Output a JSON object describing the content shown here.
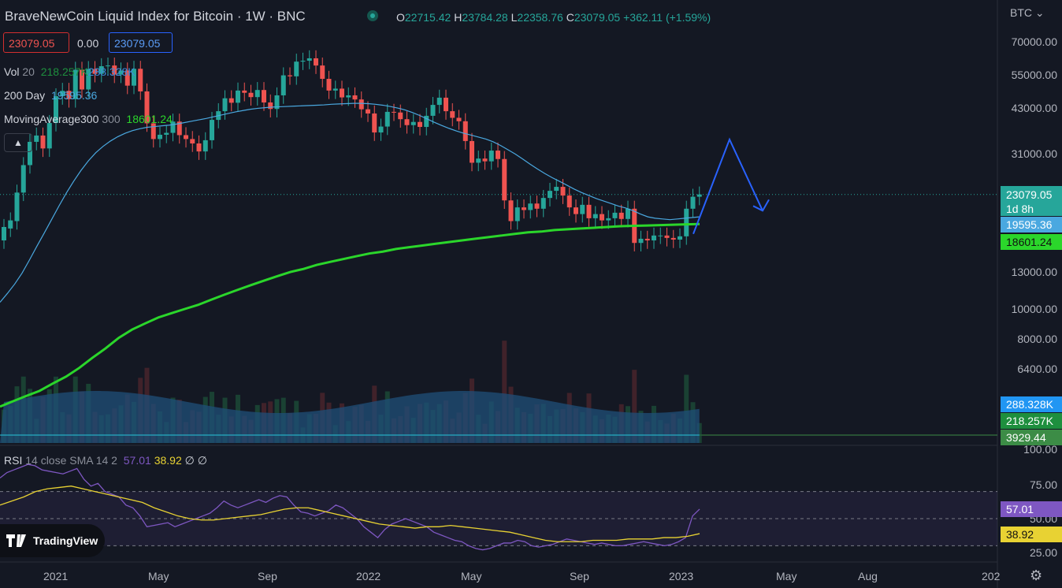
{
  "header": {
    "title": "BraveNewCoin Liquid Index for Bitcoin · 1W · BNC",
    "ohlc": [
      {
        "k": "O",
        "v": "22715.42"
      },
      {
        "k": "H",
        "v": "23784.28"
      },
      {
        "k": "L",
        "v": "22358.76"
      },
      {
        "k": "C",
        "v": "23079.05"
      },
      {
        "k": "",
        "v": "+362.11 (+1.59%)"
      }
    ],
    "sell_price": "23079.05",
    "spread": "0.00",
    "buy_price": "23079.05",
    "currency": "BTC",
    "currency_icon": "chevron-down-icon"
  },
  "indicators": [
    {
      "name": "Vol",
      "param": "20",
      "v1": "218.257K",
      "v2": "288.328K",
      "c1": "#1e8f3e",
      "c2": "#3d8bd9"
    },
    {
      "name": "200 Day",
      "param": "",
      "v1": "19595.36",
      "v2": "",
      "c1": "#4aa8e0",
      "c2": ""
    },
    {
      "name": "MovingAverage300",
      "param": "300",
      "v1": "18601.24",
      "v2": "",
      "c1": "#2bd62b",
      "c2": ""
    }
  ],
  "rsi_legend": {
    "name": "RSI",
    "params": "14 close SMA 14 2",
    "v1": "57.01",
    "v2": "38.92",
    "v3": "∅",
    "v4": "∅"
  },
  "price_axis": [
    "70000.00",
    "55000.00",
    "43000.00",
    "31000.00",
    "13000.00",
    "10000.00",
    "8000.00",
    "6400.00"
  ],
  "rsi_axis": [
    "100.00",
    "75.00",
    "50.00",
    "25.00"
  ],
  "time_axis": [
    "2021",
    "May",
    "Sep",
    "2022",
    "May",
    "Sep",
    "2023",
    "May",
    "Aug",
    "202"
  ],
  "tags": {
    "last_price": "23079.05",
    "countdown": "1d 8h",
    "ma200": "19595.36",
    "ma300": "18601.24",
    "vol_ma": "288.328K",
    "vol": "218.257K",
    "vol_low": "3929.44",
    "rsi": "57.01",
    "rsi_ma": "38.92"
  },
  "logo": {
    "text": "TradingView",
    "icon": "tradingview-logo-icon"
  },
  "colors": {
    "up": "#26a69a",
    "down": "#ef5350",
    "ma200": "#4aa8e0",
    "ma300": "#2bd62b",
    "rsi": "#7e57c2",
    "rsi_ma": "#e8d233",
    "arrow": "#2962ff"
  },
  "chart_data": {
    "type": "candlestick",
    "scale": "log",
    "interval": "1W",
    "y_ticks": [
      70000,
      55000,
      43000,
      31000,
      13000,
      10000,
      8000,
      6400
    ],
    "ylim": [
      4200,
      85000
    ],
    "time_range": [
      "2020-12-01",
      "2023-12-31"
    ],
    "candles": [
      [
        16500,
        18200
      ],
      [
        18000,
        19100
      ],
      [
        19000,
        23400
      ],
      [
        23400,
        28600
      ],
      [
        28600,
        33900
      ],
      [
        33900,
        35500
      ],
      [
        35500,
        32300
      ],
      [
        32300,
        38900
      ],
      [
        38900,
        47300
      ],
      [
        47300,
        49200
      ],
      [
        49200,
        46300
      ],
      [
        46300,
        57400
      ],
      [
        57400,
        49700
      ],
      [
        49700,
        57700
      ],
      [
        57700,
        55700
      ],
      [
        55700,
        58900
      ],
      [
        58900,
        59200
      ],
      [
        59200,
        55400
      ],
      [
        55400,
        57100
      ],
      [
        57100,
        51100
      ],
      [
        51100,
        57800
      ],
      [
        57800,
        49000
      ],
      [
        49000,
        38800
      ],
      [
        38800,
        34600
      ],
      [
        34600,
        35700
      ],
      [
        35700,
        36200
      ],
      [
        36200,
        39300
      ],
      [
        39300,
        35600
      ],
      [
        35600,
        34600
      ],
      [
        34600,
        33500
      ],
      [
        33500,
        31600
      ],
      [
        31600,
        34300
      ],
      [
        34300,
        39800
      ],
      [
        39800,
        42400
      ],
      [
        42400,
        46600
      ],
      [
        46600,
        45100
      ],
      [
        45100,
        49300
      ],
      [
        49300,
        48500
      ],
      [
        48500,
        47000
      ],
      [
        47000,
        49500
      ],
      [
        49500,
        45200
      ],
      [
        45200,
        43100
      ],
      [
        43100,
        47600
      ],
      [
        47600,
        55100
      ],
      [
        55100,
        54700
      ],
      [
        54700,
        60900
      ],
      [
        60900,
        61300
      ],
      [
        61300,
        62400
      ],
      [
        62400,
        59200
      ],
      [
        59200,
        53700
      ],
      [
        53700,
        49300
      ],
      [
        49300,
        50000
      ],
      [
        50000,
        46900
      ],
      [
        46900,
        47600
      ],
      [
        47600,
        46200
      ],
      [
        46200,
        43000
      ],
      [
        43000,
        41700
      ],
      [
        41700,
        36300
      ],
      [
        36300,
        37900
      ],
      [
        37900,
        42200
      ],
      [
        42200,
        42000
      ],
      [
        42000,
        40000
      ],
      [
        40000,
        38300
      ],
      [
        38300,
        39200
      ],
      [
        39200,
        37800
      ],
      [
        37800,
        41000
      ],
      [
        41000,
        44400
      ],
      [
        44400,
        46800
      ],
      [
        46800,
        42400
      ],
      [
        42400,
        40400
      ],
      [
        40400,
        39400
      ],
      [
        39400,
        34100
      ],
      [
        34100,
        29100
      ],
      [
        29100,
        30000
      ],
      [
        30000,
        29400
      ],
      [
        29400,
        31800
      ],
      [
        31800,
        29900
      ],
      [
        29900,
        22100
      ],
      [
        22100,
        19000
      ],
      [
        19000,
        21000
      ],
      [
        21000,
        20600
      ],
      [
        20600,
        21600
      ],
      [
        21600,
        20800
      ],
      [
        20800,
        22500
      ],
      [
        22500,
        23700
      ],
      [
        23700,
        24400
      ],
      [
        24400,
        22900
      ],
      [
        22900,
        21000
      ],
      [
        21000,
        20000
      ],
      [
        20000,
        21400
      ],
      [
        21400,
        19400
      ],
      [
        19400,
        20000
      ],
      [
        20000,
        19100
      ],
      [
        19100,
        19400
      ],
      [
        19400,
        20200
      ],
      [
        20200,
        19300
      ],
      [
        19300,
        20800
      ],
      [
        20800,
        16200
      ],
      [
        16200,
        16700
      ],
      [
        16700,
        16500
      ],
      [
        16500,
        17100
      ],
      [
        17100,
        17100
      ],
      [
        17100,
        16800
      ],
      [
        16800,
        16600
      ],
      [
        16600,
        17000
      ],
      [
        17000,
        20800
      ],
      [
        20800,
        22700
      ],
      [
        22700,
        23079
      ]
    ],
    "ma200": [
      10500,
      11200,
      12000,
      13000,
      14300,
      15800,
      17400,
      19200,
      21200,
      23300,
      25400,
      27500,
      29500,
      31300,
      32800,
      34100,
      35200,
      36100,
      36800,
      37300,
      37700,
      37900,
      38100,
      38300,
      38600,
      39000,
      39400,
      39800,
      40200,
      40700,
      41200,
      41700,
      42200,
      42600,
      43000,
      43300,
      43500,
      43700,
      43800,
      43900,
      44000,
      44100,
      44200,
      44300,
      44400,
      44600,
      44700,
      44800,
      44900,
      44900,
      44800,
      44600,
      44300,
      43900,
      43400,
      42800,
      42000,
      41100,
      40100,
      39100,
      38200,
      37400,
      36700,
      36100,
      35600,
      35100,
      34600,
      33900,
      33000,
      32000,
      31000,
      29900,
      28800,
      27800,
      26900,
      26100,
      25400,
      24700,
      24000,
      23400,
      22900,
      22400,
      22000,
      21600,
      21200,
      20900,
      20500,
      20000,
      19600,
      19400,
      19300,
      19200,
      19300,
      19400,
      19500,
      19595
    ],
    "ma300": [
      4900,
      5100,
      5300,
      5500,
      5800,
      6100,
      6500,
      7000,
      7500,
      8100,
      8600,
      9000,
      9400,
      9700,
      10000,
      10300,
      10700,
      11100,
      11500,
      11900,
      12300,
      12700,
      13100,
      13400,
      13800,
      14100,
      14400,
      14700,
      15000,
      15200,
      15500,
      15700,
      15900,
      16100,
      16300,
      16500,
      16700,
      16900,
      17100,
      17300,
      17500,
      17600,
      17800,
      17900,
      18000,
      18100,
      18200,
      18300,
      18350,
      18400,
      18450,
      18500,
      18550,
      18601
    ],
    "volume_ma": "288.328K",
    "rsi": [
      80,
      84,
      86,
      88,
      90,
      89,
      86,
      85,
      84,
      83,
      85,
      87,
      79,
      74,
      76,
      70,
      68,
      66,
      60,
      58,
      52,
      44,
      45,
      46,
      47,
      44,
      46,
      48,
      50,
      52,
      54,
      58,
      63,
      60,
      58,
      60,
      62,
      64,
      62,
      65,
      67,
      66,
      60,
      55,
      54,
      52,
      54,
      56,
      60,
      58,
      54,
      50,
      44,
      40,
      36,
      42,
      46,
      48,
      50,
      48,
      46,
      44,
      40,
      38,
      36,
      34,
      33,
      30,
      28,
      27,
      28,
      30,
      32,
      32,
      34,
      33,
      30,
      29,
      30,
      31,
      33,
      35,
      34,
      33,
      32,
      31,
      32,
      31,
      30,
      30,
      31,
      32,
      33,
      32,
      31,
      30,
      31,
      33,
      36,
      52,
      57.01
    ],
    "rsi_ma": [
      60,
      63,
      66,
      70,
      72,
      73,
      74,
      72,
      70,
      68,
      66,
      64,
      62,
      58,
      55,
      52,
      50,
      49,
      49,
      50,
      51,
      52,
      53,
      55,
      57,
      58,
      58,
      56,
      54,
      52,
      50,
      48,
      46,
      45,
      44,
      43,
      44,
      44,
      45,
      44,
      43,
      42,
      41,
      40,
      38,
      36,
      34,
      33,
      33,
      33,
      34,
      34,
      34,
      35,
      35,
      35,
      36,
      36,
      37,
      38.92
    ],
    "rsi_levels": [
      70,
      50,
      30
    ],
    "projection": {
      "start": 23079,
      "peak": 34500,
      "end": 20500
    }
  }
}
